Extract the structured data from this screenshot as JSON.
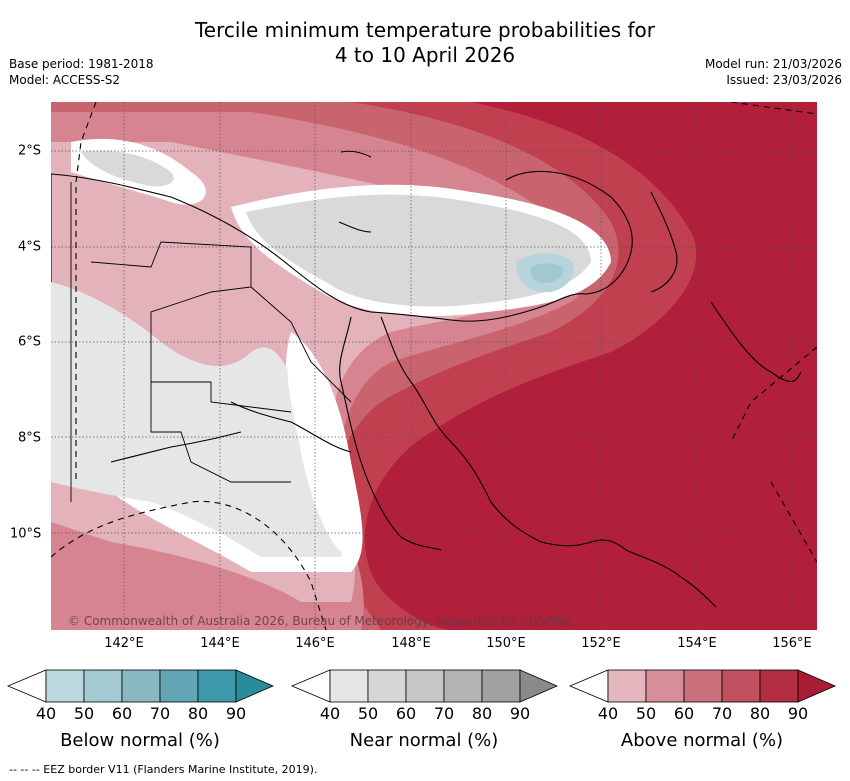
{
  "title_line1": "Tercile minimum temperature probabilities for",
  "title_line2": "4 to 10 April 2026",
  "base_period": "Base period: 1981-2018",
  "model": "Model: ACCESS-S2",
  "model_run": "Model run: 21/03/2026",
  "issued": "Issued: 23/03/2026",
  "lat_labels": [
    "2°S",
    "4°S",
    "6°S",
    "8°S",
    "10°S"
  ],
  "lon_labels": [
    "142°E",
    "144°E",
    "146°E",
    "148°E",
    "150°E",
    "152°E",
    "154°E",
    "156°E"
  ],
  "copyright": "© Commonwealth of Australia 2026, Bureau of Meteorology, supported by COSPPac",
  "legends": {
    "below": {
      "title": "Below normal (%)",
      "ticks": [
        "40",
        "50",
        "60",
        "70",
        "80",
        "90"
      ],
      "colors": [
        "#bdd7de",
        "#a4c9d1",
        "#89b8c3",
        "#63a5b5",
        "#3e9aaa",
        "#2b8a9b"
      ]
    },
    "near": {
      "title": "Near normal (%)",
      "ticks": [
        "40",
        "50",
        "60",
        "70",
        "80",
        "90"
      ],
      "colors": [
        "#e6e6e6",
        "#d6d6d6",
        "#c6c6c6",
        "#b3b3b3",
        "#a1a1a1",
        "#8a8a8a"
      ]
    },
    "above": {
      "title": "Above normal (%)",
      "ticks": [
        "40",
        "50",
        "60",
        "70",
        "80",
        "90"
      ],
      "colors": [
        "#e4b6bd",
        "#d88f99",
        "#cb717e",
        "#c0505f",
        "#b52d42",
        "#a81c36"
      ]
    }
  },
  "footnote": "-- -- -- EEZ border V11 (Flanders Marine Institute, 2019)."
}
